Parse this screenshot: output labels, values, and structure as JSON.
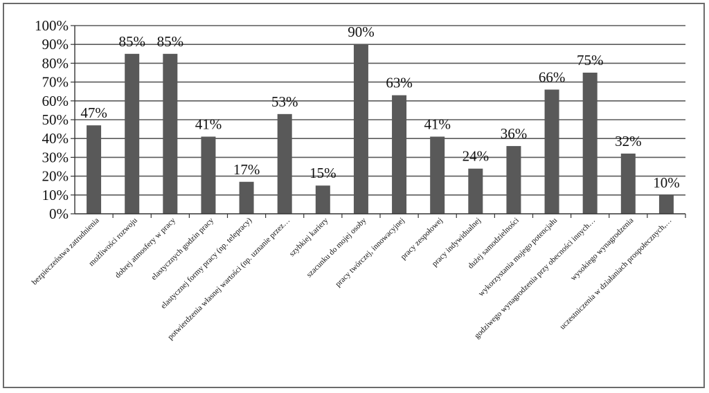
{
  "chart_data": {
    "type": "bar",
    "categories": [
      "bezpieczeństwa zatrudnienia",
      "możliwości rozwoju",
      "dobrej atmosfery w pracy",
      "elastycznych godzin pracy",
      "elastycznej formy pracy (np. telepracy)",
      "potwierdzenia własnej wartości (np. uznanie przez…",
      "szybkiej kariery",
      "szacunku do mojej osoby",
      "pracy twórczej, innowacyjnej",
      "pracy zespołowej",
      "pracy indywidualnej",
      "dużej samodzielności",
      "wykorzystania mojego potencjału",
      "godziwego wynagrodzenia przy obecności innych…",
      "wysokiego wynagrodzenia",
      "uczestniczenia w działaniach prospołecznych,…"
    ],
    "values": [
      47,
      85,
      85,
      41,
      17,
      53,
      15,
      90,
      63,
      41,
      24,
      36,
      66,
      75,
      32,
      10
    ],
    "data_labels": [
      "47%",
      "85%",
      "85%",
      "41%",
      "17%",
      "53%",
      "15%",
      "90%",
      "63%",
      "41%",
      "24%",
      "36%",
      "66%",
      "75%",
      "32%",
      "10%"
    ],
    "y_ticks": [
      "0%",
      "10%",
      "20%",
      "30%",
      "40%",
      "50%",
      "60%",
      "70%",
      "80%",
      "90%",
      "100%"
    ],
    "ylim": [
      0,
      100
    ],
    "grid": true,
    "legend": "none",
    "bar_color": "#595959",
    "grid_color": "#595959"
  }
}
